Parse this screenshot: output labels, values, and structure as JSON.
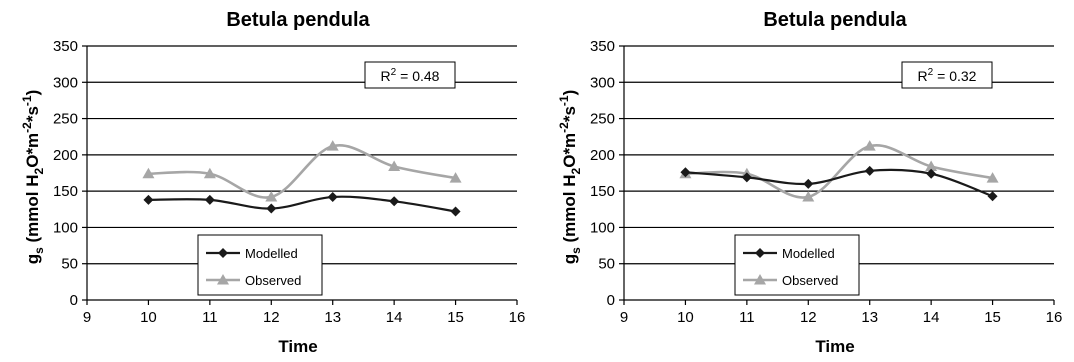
{
  "chart_data": [
    {
      "type": "line",
      "title": "Betula pendula",
      "xlabel": "Time",
      "ylabel": {
        "main": "g",
        "sub": "s",
        "rest": "(mmol H",
        "sub2": "2",
        "rest2": "O*m",
        "sup1": "-2",
        "rest3": "*s",
        "sup2": "-1",
        "close": ")"
      },
      "xlim": [
        9,
        16
      ],
      "ylim": [
        0,
        350
      ],
      "xticks": [
        9,
        10,
        11,
        12,
        13,
        14,
        15,
        16
      ],
      "yticks": [
        0,
        50,
        100,
        150,
        200,
        250,
        300,
        350
      ],
      "grid": "horizontal",
      "annotation": {
        "label": "R",
        "sup": "2",
        "value": " = 0.48"
      },
      "legend": {
        "placement": "bottom-left",
        "entries": [
          "Modelled",
          "Observed"
        ]
      },
      "series": [
        {
          "name": "Modelled",
          "color": "#1a1a1a",
          "marker": "diamond",
          "x": [
            10,
            11,
            12,
            13,
            14,
            15
          ],
          "y": [
            138,
            138,
            126,
            142,
            136,
            122
          ]
        },
        {
          "name": "Observed",
          "color": "#a6a6a6",
          "marker": "triangle",
          "x": [
            10,
            11,
            12,
            13,
            14,
            15
          ],
          "y": [
            174,
            174,
            142,
            212,
            184,
            168
          ]
        }
      ]
    },
    {
      "type": "line",
      "title": "Betula pendula",
      "xlabel": "Time",
      "ylabel": {
        "main": "g",
        "sub": "s",
        "rest": "(mmol H",
        "sub2": "2",
        "rest2": "O*m",
        "sup1": "-2",
        "rest3": "*s",
        "sup2": "-1",
        "close": ")"
      },
      "xlim": [
        9,
        16
      ],
      "ylim": [
        0,
        350
      ],
      "xticks": [
        9,
        10,
        11,
        12,
        13,
        14,
        15,
        16
      ],
      "yticks": [
        0,
        50,
        100,
        150,
        200,
        250,
        300,
        350
      ],
      "grid": "horizontal",
      "annotation": {
        "label": "R",
        "sup": "2",
        "value": " = 0.32"
      },
      "legend": {
        "placement": "bottom-left",
        "entries": [
          "Modelled",
          "Observed"
        ]
      },
      "series": [
        {
          "name": "Modelled",
          "color": "#1a1a1a",
          "marker": "diamond",
          "x": [
            10,
            11,
            12,
            13,
            14,
            15
          ],
          "y": [
            176,
            169,
            160,
            178,
            174,
            143
          ]
        },
        {
          "name": "Observed",
          "color": "#a6a6a6",
          "marker": "triangle",
          "x": [
            10,
            11,
            12,
            13,
            14,
            15
          ],
          "y": [
            174,
            174,
            142,
            212,
            184,
            168
          ]
        }
      ]
    }
  ]
}
